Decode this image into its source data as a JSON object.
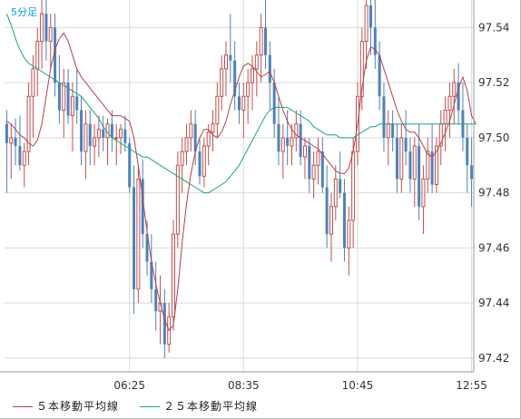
{
  "interval_label": "5分足",
  "legend": [
    {
      "label": "５本移動平均線",
      "color": "#b5404a"
    },
    {
      "label": "２５本移動平均線",
      "color": "#20a080"
    }
  ],
  "colors": {
    "up": "#c0504d",
    "down": "#4f81bd",
    "ma5": "#b5404a",
    "ma25": "#20a080",
    "grid": "#d9d9d9"
  },
  "chart_data": {
    "type": "candlestick",
    "x_tick_labels": [
      "06:25",
      "08:35",
      "10:45",
      "12:55"
    ],
    "y_tick_labels": [
      "97.54",
      "97.52",
      "97.50",
      "97.48",
      "97.46",
      "97.44",
      "97.42"
    ],
    "ylim": [
      97.415,
      97.55
    ],
    "grid": true,
    "series": [
      {
        "name": "５本移動平均線",
        "values": [
          97.506,
          97.505,
          97.503,
          97.501,
          97.5,
          97.498,
          97.497,
          97.499,
          97.505,
          97.515,
          97.525,
          97.532,
          97.536,
          97.538,
          97.535,
          97.53,
          97.525,
          97.522,
          97.52,
          97.518,
          97.516,
          97.514,
          97.512,
          97.51,
          97.508,
          97.508,
          97.508,
          97.507,
          97.506,
          97.5,
          97.49,
          97.478,
          97.466,
          97.455,
          97.447,
          97.44,
          97.434,
          97.43,
          97.432,
          97.445,
          97.462,
          97.476,
          97.487,
          97.495,
          97.5,
          97.503,
          97.503,
          97.501,
          97.5,
          97.502,
          97.506,
          97.512,
          97.517,
          97.522,
          97.526,
          97.527,
          97.526,
          97.524,
          97.522,
          97.523,
          97.524,
          97.52,
          97.515,
          97.51,
          97.506,
          97.503,
          97.501,
          97.5,
          97.499,
          97.498,
          97.497,
          97.496,
          97.494,
          97.492,
          97.49,
          97.488,
          97.487,
          97.487,
          97.489,
          97.495,
          97.505,
          97.518,
          97.528,
          97.533,
          97.532,
          97.53,
          97.525,
          97.52,
          97.515,
          97.51,
          97.506,
          97.503,
          97.502,
          97.502,
          97.5,
          97.497,
          97.494,
          97.493,
          97.495,
          97.498,
          97.502,
          97.506,
          97.512,
          97.518,
          97.522,
          97.517,
          97.508,
          97.505
        ]
      },
      {
        "name": "２５本移動平均線",
        "values": [
          97.545,
          97.541,
          97.536,
          97.532,
          97.529,
          97.527,
          97.526,
          97.525,
          97.524,
          97.523,
          97.522,
          97.521,
          97.52,
          97.519,
          97.518,
          97.517,
          97.516,
          97.515,
          97.513,
          97.511,
          97.509,
          97.507,
          97.504,
          97.502,
          97.5,
          97.499,
          97.498,
          97.497,
          97.496,
          97.495,
          97.494,
          97.493,
          97.493,
          97.492,
          97.491,
          97.49,
          97.489,
          97.488,
          97.487,
          97.486,
          97.485,
          97.484,
          97.483,
          97.482,
          97.481,
          97.48,
          97.48,
          97.481,
          97.482,
          97.483,
          97.484,
          97.486,
          97.488,
          97.49,
          97.493,
          97.496,
          97.499,
          97.502,
          97.505,
          97.508,
          97.51,
          97.511,
          97.511,
          97.511,
          97.511,
          97.51,
          97.509,
          97.508,
          97.507,
          97.506,
          97.504,
          97.503,
          97.502,
          97.501,
          97.501,
          97.501,
          97.5,
          97.5,
          97.5,
          97.5,
          97.501,
          97.502,
          97.503,
          97.504,
          97.504,
          97.505,
          97.505,
          97.505,
          97.505,
          97.505,
          97.505,
          97.505,
          97.505,
          97.505,
          97.505,
          97.505,
          97.505,
          97.505,
          97.505,
          97.505,
          97.505,
          97.505,
          97.505,
          97.505,
          97.505,
          97.505,
          97.505,
          97.505
        ]
      }
    ],
    "candles": [
      [
        97.505,
        97.51,
        97.48,
        97.498
      ],
      [
        97.498,
        97.505,
        97.485,
        97.5
      ],
      [
        97.5,
        97.507,
        97.49,
        97.497
      ],
      [
        97.497,
        97.508,
        97.488,
        97.49
      ],
      [
        97.49,
        97.498,
        97.482,
        97.495
      ],
      [
        97.495,
        97.52,
        97.49,
        97.515
      ],
      [
        97.515,
        97.53,
        97.5,
        97.525
      ],
      [
        97.525,
        97.54,
        97.515,
        97.535
      ],
      [
        97.535,
        97.55,
        97.525,
        97.545
      ],
      [
        97.545,
        97.552,
        97.528,
        97.535
      ],
      [
        97.535,
        97.545,
        97.525,
        97.54
      ],
      [
        97.54,
        97.545,
        97.515,
        97.52
      ],
      [
        97.52,
        97.53,
        97.505,
        97.51
      ],
      [
        97.51,
        97.525,
        97.5,
        97.52
      ],
      [
        97.52,
        97.525,
        97.505,
        97.508
      ],
      [
        97.508,
        97.52,
        97.495,
        97.515
      ],
      [
        97.515,
        97.525,
        97.505,
        97.51
      ],
      [
        97.51,
        97.515,
        97.49,
        97.495
      ],
      [
        97.495,
        97.51,
        97.485,
        97.505
      ],
      [
        97.505,
        97.51,
        97.49,
        97.497
      ],
      [
        97.497,
        97.505,
        97.49,
        97.5
      ],
      [
        97.5,
        97.508,
        97.493,
        97.503
      ],
      [
        97.503,
        97.508,
        97.495,
        97.5
      ],
      [
        97.5,
        97.507,
        97.49,
        97.505
      ],
      [
        97.505,
        97.51,
        97.495,
        97.5
      ],
      [
        97.5,
        97.505,
        97.49,
        97.5
      ],
      [
        97.5,
        97.505,
        97.494,
        97.503
      ],
      [
        97.503,
        97.508,
        97.495,
        97.498
      ],
      [
        97.498,
        97.5,
        97.48,
        97.482
      ],
      [
        97.482,
        97.49,
        97.436,
        97.445
      ],
      [
        97.445,
        97.49,
        97.44,
        97.485
      ],
      [
        97.485,
        97.492,
        97.46,
        97.465
      ],
      [
        97.465,
        97.47,
        97.45,
        97.455
      ],
      [
        97.455,
        97.465,
        97.44,
        97.445
      ],
      [
        97.445,
        97.455,
        97.43,
        97.437
      ],
      [
        97.437,
        97.45,
        97.425,
        97.44
      ],
      [
        97.44,
        97.445,
        97.42,
        97.425
      ],
      [
        97.425,
        97.44,
        97.422,
        97.435
      ],
      [
        97.435,
        97.47,
        97.43,
        97.465
      ],
      [
        97.465,
        97.495,
        97.46,
        97.49
      ],
      [
        97.49,
        97.5,
        97.48,
        97.495
      ],
      [
        97.495,
        97.505,
        97.49,
        97.5
      ],
      [
        97.5,
        97.51,
        97.495,
        97.505
      ],
      [
        97.505,
        97.51,
        97.49,
        97.495
      ],
      [
        97.495,
        97.5,
        97.483,
        97.486
      ],
      [
        97.486,
        97.5,
        97.482,
        97.497
      ],
      [
        97.497,
        97.505,
        97.49,
        97.502
      ],
      [
        97.502,
        97.51,
        97.495,
        97.505
      ],
      [
        97.505,
        97.52,
        97.5,
        97.515
      ],
      [
        97.515,
        97.53,
        97.51,
        97.525
      ],
      [
        97.525,
        97.535,
        97.515,
        97.53
      ],
      [
        97.53,
        97.545,
        97.52,
        97.528
      ],
      [
        97.528,
        97.535,
        97.51,
        97.515
      ],
      [
        97.515,
        97.52,
        97.505,
        97.51
      ],
      [
        97.51,
        97.52,
        97.5,
        97.515
      ],
      [
        97.515,
        97.525,
        97.505,
        97.52
      ],
      [
        97.52,
        97.53,
        97.51,
        97.525
      ],
      [
        97.525,
        97.535,
        97.515,
        97.53
      ],
      [
        97.53,
        97.545,
        97.52,
        97.54
      ],
      [
        97.54,
        97.55,
        97.525,
        97.53
      ],
      [
        97.53,
        97.535,
        97.51,
        97.52
      ],
      [
        97.52,
        97.525,
        97.5,
        97.505
      ],
      [
        97.505,
        97.515,
        97.49,
        97.495
      ],
      [
        97.495,
        97.505,
        97.485,
        97.5
      ],
      [
        97.5,
        97.51,
        97.49,
        97.497
      ],
      [
        97.497,
        97.505,
        97.49,
        97.5
      ],
      [
        97.5,
        97.51,
        97.495,
        97.505
      ],
      [
        97.505,
        97.51,
        97.49,
        97.493
      ],
      [
        97.493,
        97.5,
        97.485,
        97.497
      ],
      [
        97.497,
        97.5,
        97.48,
        97.485
      ],
      [
        97.485,
        97.495,
        97.478,
        97.49
      ],
      [
        97.49,
        97.5,
        97.483,
        97.495
      ],
      [
        97.495,
        97.5,
        97.48,
        97.482
      ],
      [
        97.482,
        97.49,
        97.46,
        97.465
      ],
      [
        97.465,
        97.48,
        97.455,
        97.475
      ],
      [
        97.475,
        97.49,
        97.47,
        97.485
      ],
      [
        97.485,
        97.495,
        97.478,
        97.48
      ],
      [
        97.48,
        97.485,
        97.455,
        97.46
      ],
      [
        97.46,
        97.475,
        97.45,
        97.47
      ],
      [
        97.47,
        97.5,
        97.46,
        97.495
      ],
      [
        97.495,
        97.52,
        97.49,
        97.515
      ],
      [
        97.515,
        97.54,
        97.51,
        97.535
      ],
      [
        97.535,
        97.56,
        97.525,
        97.548
      ],
      [
        97.548,
        97.555,
        97.53,
        97.54
      ],
      [
        97.54,
        97.55,
        97.525,
        97.53
      ],
      [
        97.53,
        97.535,
        97.51,
        97.515
      ],
      [
        97.515,
        97.52,
        97.495,
        97.5
      ],
      [
        97.5,
        97.51,
        97.49,
        97.505
      ],
      [
        97.505,
        97.51,
        97.495,
        97.5
      ],
      [
        97.5,
        97.505,
        97.48,
        97.485
      ],
      [
        97.485,
        97.505,
        97.48,
        97.5
      ],
      [
        97.5,
        97.51,
        97.49,
        97.495
      ],
      [
        97.495,
        97.5,
        97.48,
        97.485
      ],
      [
        97.485,
        97.5,
        97.475,
        97.497
      ],
      [
        97.497,
        97.505,
        97.47,
        97.475
      ],
      [
        97.475,
        97.49,
        97.465,
        97.485
      ],
      [
        97.485,
        97.5,
        97.48,
        97.495
      ],
      [
        97.495,
        97.505,
        97.48,
        97.483
      ],
      [
        97.483,
        97.5,
        97.48,
        97.497
      ],
      [
        97.497,
        97.51,
        97.49,
        97.505
      ],
      [
        97.505,
        97.515,
        97.495,
        97.51
      ],
      [
        97.51,
        97.52,
        97.5,
        97.515
      ],
      [
        97.515,
        97.525,
        97.505,
        97.52
      ],
      [
        97.52,
        97.527,
        97.505,
        97.51
      ],
      [
        97.51,
        97.52,
        97.495,
        97.5
      ],
      [
        97.5,
        97.505,
        97.48,
        97.49
      ],
      [
        97.49,
        97.5,
        97.475,
        97.485
      ]
    ]
  }
}
